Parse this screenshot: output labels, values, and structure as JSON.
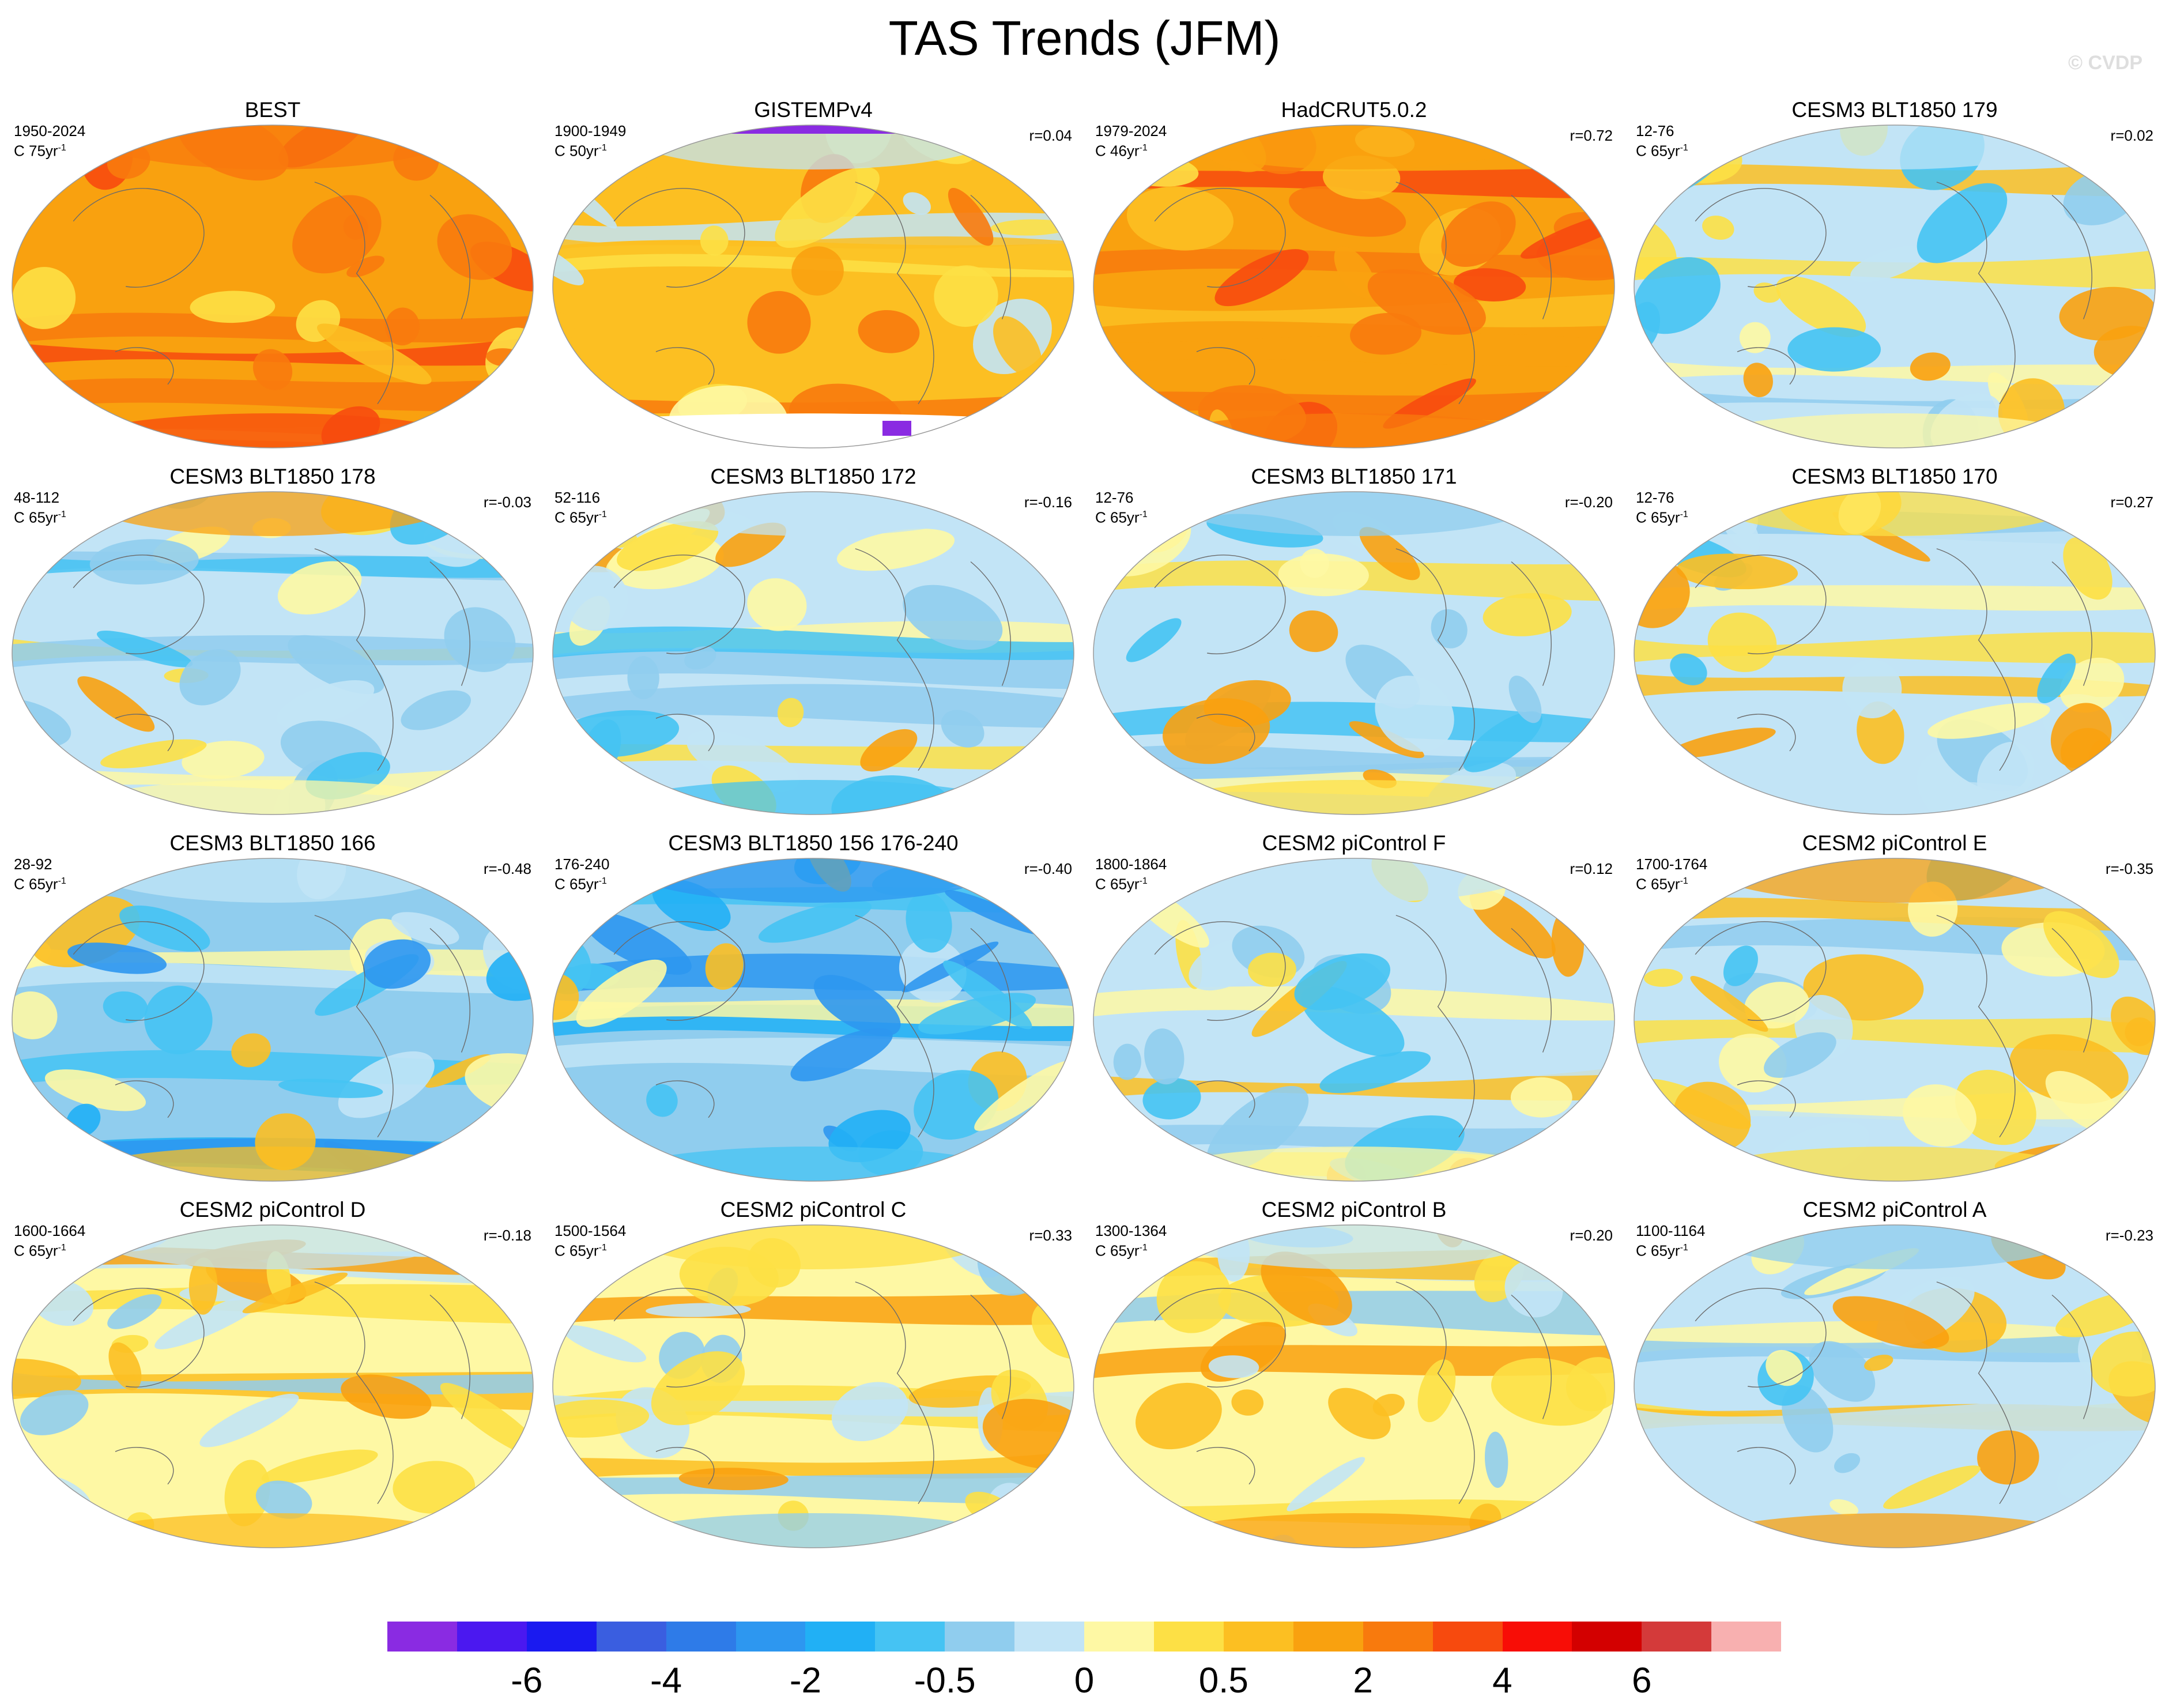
{
  "title": "TAS Trends (JFM)",
  "watermark": "© CVDP",
  "units_label": {
    "prefix": "C ",
    "suffix": "yr",
    "exponent": "-1"
  },
  "colorbar": {
    "colors": [
      "#8a2be2",
      "#4b18f0",
      "#1a1af0",
      "#3a5ee0",
      "#2e7be8",
      "#2d97f0",
      "#21b0f5",
      "#45c3f3",
      "#90cdee",
      "#c2e4f6",
      "#fef8a4",
      "#fde045",
      "#fcbf22",
      "#f9a10f",
      "#f87a0d",
      "#f74a0e",
      "#f80d06",
      "#d30000",
      "#d43a3a",
      "#f8b0b0"
    ],
    "tick_labels": [
      "-6",
      "-4",
      "-2",
      "-0.5",
      "0",
      "0.5",
      "2",
      "4",
      "6"
    ],
    "tick_boundaries": [
      2,
      4,
      6,
      8,
      10,
      12,
      14,
      16,
      18
    ]
  },
  "panels": [
    {
      "title": "BEST",
      "years": "1950-2024",
      "span": "75",
      "r": "",
      "pattern": "warm"
    },
    {
      "title": "GISTEMPv4",
      "years": "1900-1949",
      "span": "50",
      "r": "r=0.04",
      "pattern": "gistemp"
    },
    {
      "title": "HadCRUT5.0.2",
      "years": "1979-2024",
      "span": "46",
      "r": "r=0.72",
      "pattern": "warm"
    },
    {
      "title": "CESM3 BLT1850 179",
      "years": "12-76",
      "span": "65",
      "r": "r=0.02",
      "pattern": "mixed"
    },
    {
      "title": "CESM3 BLT1850 178",
      "years": "48-112",
      "span": "65",
      "r": "r=-0.03",
      "pattern": "cool"
    },
    {
      "title": "CESM3 BLT1850 172",
      "years": "52-116",
      "span": "65",
      "r": "r=-0.16",
      "pattern": "cool"
    },
    {
      "title": "CESM3 BLT1850 171",
      "years": "12-76",
      "span": "65",
      "r": "r=-0.20",
      "pattern": "cool"
    },
    {
      "title": "CESM3 BLT1850 170",
      "years": "12-76",
      "span": "65",
      "r": "r=0.27",
      "pattern": "mixed"
    },
    {
      "title": "CESM3 BLT1850 166",
      "years": "28-92",
      "span": "65",
      "r": "r=-0.48",
      "pattern": "cold"
    },
    {
      "title": "CESM3 BLT1850 156 176-240",
      "years": "176-240",
      "span": "65",
      "r": "r=-0.40",
      "pattern": "cold"
    },
    {
      "title": "CESM2 piControl F",
      "years": "1800-1864",
      "span": "65",
      "r": "r=0.12",
      "pattern": "mixed"
    },
    {
      "title": "CESM2 piControl E",
      "years": "1700-1764",
      "span": "65",
      "r": "r=-0.35",
      "pattern": "mixed"
    },
    {
      "title": "CESM2 piControl D",
      "years": "1600-1664",
      "span": "65",
      "r": "r=-0.18",
      "pattern": "mild"
    },
    {
      "title": "CESM2 piControl C",
      "years": "1500-1564",
      "span": "65",
      "r": "r=0.33",
      "pattern": "mild"
    },
    {
      "title": "CESM2 piControl B",
      "years": "1300-1364",
      "span": "65",
      "r": "r=0.20",
      "pattern": "mild"
    },
    {
      "title": "CESM2 piControl A",
      "years": "1100-1164",
      "span": "65",
      "r": "r=-0.23",
      "pattern": "mixed"
    }
  ]
}
